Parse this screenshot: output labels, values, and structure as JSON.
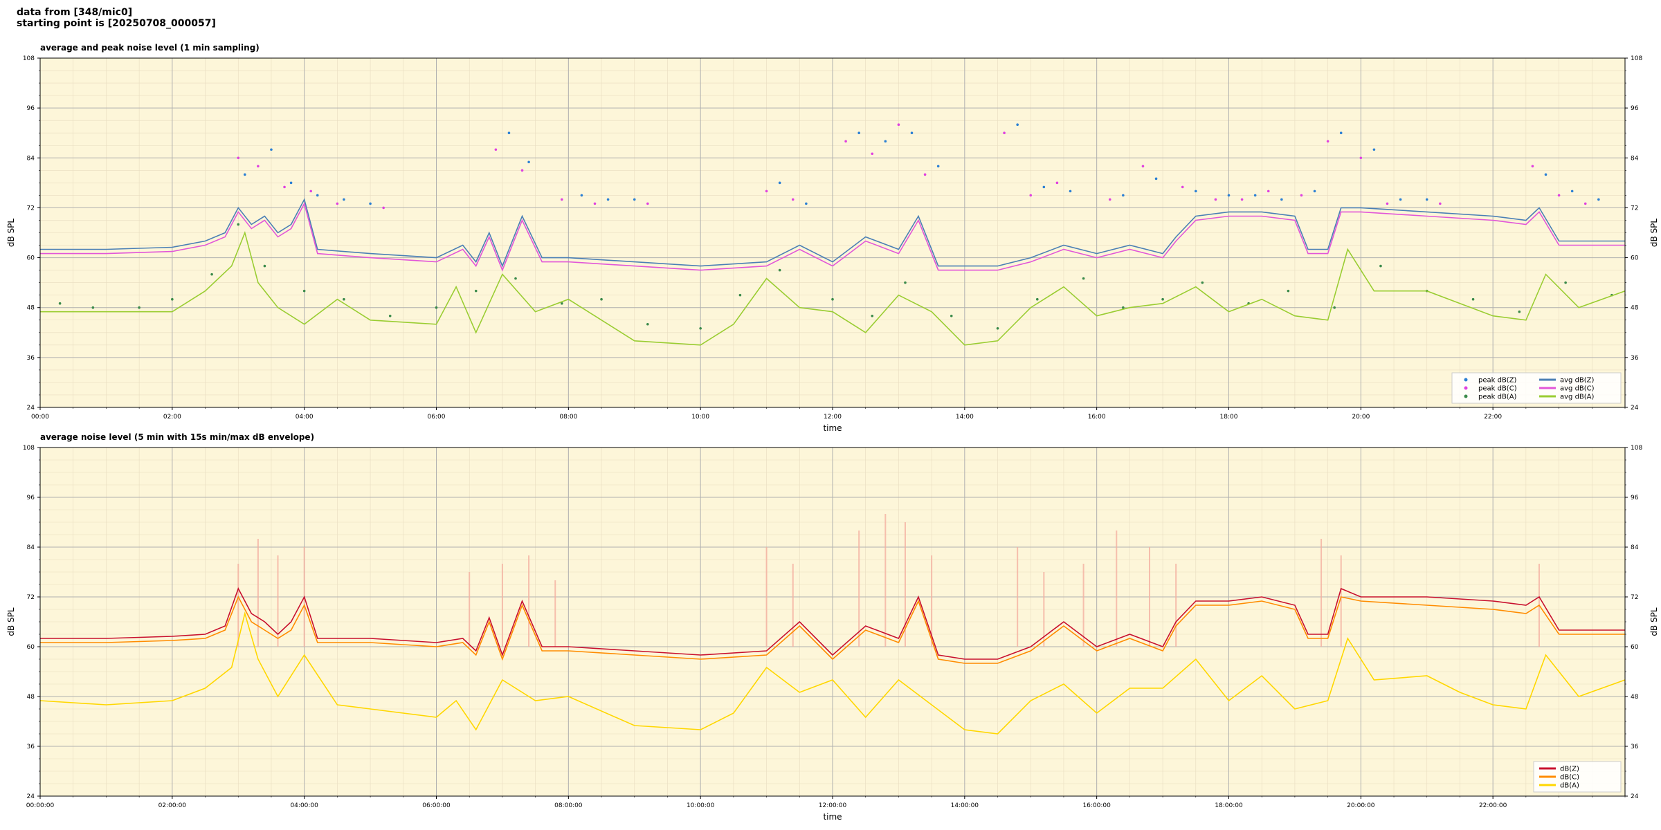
{
  "header": {
    "line1": "data from [348/mic0]",
    "line2": "starting point is [20250708_000057]"
  },
  "chart_data": [
    {
      "type": "line",
      "title": "average and peak noise level (1 min sampling)",
      "xlabel": "time",
      "ylabel": "dB SPL",
      "ylim": [
        24,
        108
      ],
      "xlim": [
        0,
        24
      ],
      "yticks": [
        "24",
        "36",
        "48",
        "60",
        "72",
        "84",
        "96",
        "108"
      ],
      "xticks": [
        "00:00",
        "02:00",
        "04:00",
        "06:00",
        "08:00",
        "10:00",
        "12:00",
        "14:00",
        "16:00",
        "18:00",
        "20:00",
        "22:00"
      ],
      "grid": true,
      "legend_position": "lower-right",
      "legend": [
        {
          "label": "peak dB(Z)",
          "kind": "dot",
          "color": "#2a7fd4"
        },
        {
          "label": "peak dB(C)",
          "kind": "dot",
          "color": "#e040e0"
        },
        {
          "label": "peak dB(A)",
          "kind": "dot",
          "color": "#3a8a4a"
        },
        {
          "label": "avg dB(Z)",
          "kind": "line",
          "color": "#4a7fb5"
        },
        {
          "label": "avg dB(C)",
          "kind": "line",
          "color": "#e256d8"
        },
        {
          "label": "avg dB(A)",
          "kind": "line",
          "color": "#9acd32"
        }
      ],
      "series": [
        {
          "color": "#4a7fb5",
          "x": [
            0,
            1,
            2,
            2.5,
            2.8,
            3,
            3.2,
            3.4,
            3.6,
            3.8,
            4,
            4.2,
            5,
            6,
            6.4,
            6.6,
            6.8,
            7,
            7.3,
            7.6,
            8,
            9,
            10,
            11,
            11.5,
            12,
            12.5,
            13,
            13.3,
            13.6,
            14,
            14.5,
            15,
            15.5,
            16,
            16.5,
            17,
            17.2,
            17.5,
            18,
            18.5,
            19,
            19.2,
            19.5,
            19.7,
            20,
            21,
            22,
            22.5,
            22.7,
            23,
            24
          ],
          "y": [
            62,
            62,
            62.5,
            64,
            66,
            72,
            68,
            70,
            66,
            68,
            74,
            62,
            61,
            60,
            63,
            59,
            66,
            58,
            70,
            60,
            60,
            59,
            58,
            59,
            63,
            59,
            65,
            62,
            70,
            58,
            58,
            58,
            60,
            63,
            61,
            63,
            61,
            65,
            70,
            71,
            71,
            70,
            62,
            62,
            72,
            72,
            71,
            70,
            69,
            72,
            64,
            64
          ]
        },
        {
          "color": "#e256d8",
          "x": [
            0,
            1,
            2,
            2.5,
            2.8,
            3,
            3.2,
            3.4,
            3.6,
            3.8,
            4,
            4.2,
            5,
            6,
            6.4,
            6.6,
            6.8,
            7,
            7.3,
            7.6,
            8,
            9,
            10,
            11,
            11.5,
            12,
            12.5,
            13,
            13.3,
            13.6,
            14,
            14.5,
            15,
            15.5,
            16,
            16.5,
            17,
            17.2,
            17.5,
            18,
            18.5,
            19,
            19.2,
            19.5,
            19.7,
            20,
            21,
            22,
            22.5,
            22.7,
            23,
            24
          ],
          "y": [
            61,
            61,
            61.5,
            63,
            65,
            71,
            67,
            69,
            65,
            67,
            73,
            61,
            60,
            59,
            62,
            58,
            65,
            57,
            69,
            59,
            59,
            58,
            57,
            58,
            62,
            58,
            64,
            61,
            69,
            57,
            57,
            57,
            59,
            62,
            60,
            62,
            60,
            64,
            69,
            70,
            70,
            69,
            61,
            61,
            71,
            71,
            70,
            69,
            68,
            71,
            63,
            63
          ]
        },
        {
          "color": "#9acd32",
          "x": [
            0,
            1,
            2,
            2.5,
            2.9,
            3.1,
            3.3,
            3.6,
            4,
            4.5,
            5,
            6,
            6.3,
            6.6,
            7,
            7.5,
            8,
            9,
            10,
            10.5,
            11,
            11.5,
            12,
            12.5,
            13,
            13.5,
            14,
            14.5,
            15,
            15.5,
            16,
            16.5,
            17,
            17.5,
            18,
            18.5,
            19,
            19.5,
            19.8,
            20.2,
            21,
            21.5,
            22,
            22.5,
            22.8,
            23.3,
            24
          ],
          "y": [
            47,
            47,
            47,
            52,
            58,
            66,
            54,
            48,
            44,
            50,
            45,
            44,
            53,
            42,
            56,
            47,
            50,
            40,
            39,
            44,
            55,
            48,
            47,
            42,
            51,
            47,
            39,
            40,
            48,
            53,
            46,
            48,
            49,
            53,
            47,
            50,
            46,
            45,
            62,
            52,
            52,
            49,
            46,
            45,
            56,
            48,
            52
          ]
        }
      ],
      "scatter": [
        {
          "color": "#2a7fd4",
          "x": [
            3.1,
            3.5,
            3.8,
            4.2,
            4.6,
            5,
            7.1,
            7.4,
            8.2,
            8.6,
            9,
            11.2,
            11.6,
            12.4,
            12.8,
            13.2,
            13.6,
            14.8,
            15.2,
            15.6,
            16.4,
            16.9,
            17.5,
            18,
            18.4,
            18.8,
            19.3,
            19.7,
            20.2,
            20.6,
            21,
            22.8,
            23.2,
            23.6
          ],
          "y": [
            80,
            86,
            78,
            75,
            74,
            73,
            90,
            83,
            75,
            74,
            74,
            78,
            73,
            90,
            88,
            90,
            82,
            92,
            77,
            76,
            75,
            79,
            76,
            75,
            75,
            74,
            76,
            90,
            86,
            74,
            74,
            80,
            76,
            74
          ]
        },
        {
          "color": "#e040e0",
          "x": [
            3,
            3.3,
            3.7,
            4.1,
            4.5,
            5.2,
            6.9,
            7.3,
            7.9,
            8.4,
            9.2,
            11,
            11.4,
            12.2,
            12.6,
            13,
            13.4,
            14.6,
            15,
            15.4,
            16.2,
            16.7,
            17.3,
            17.8,
            18.2,
            18.6,
            19.1,
            19.5,
            20,
            20.4,
            21.2,
            22.6,
            23,
            23.4
          ],
          "y": [
            84,
            82,
            77,
            76,
            73,
            72,
            86,
            81,
            74,
            73,
            73,
            76,
            74,
            88,
            85,
            92,
            80,
            90,
            75,
            78,
            74,
            82,
            77,
            74,
            74,
            76,
            75,
            88,
            84,
            73,
            73,
            82,
            75,
            73
          ]
        },
        {
          "color": "#3a8a4a",
          "x": [
            0.3,
            0.8,
            1.5,
            2,
            2.6,
            3,
            3.4,
            4,
            4.6,
            5.3,
            6,
            6.6,
            7.2,
            7.9,
            8.5,
            9.2,
            10,
            10.6,
            11.2,
            12,
            12.6,
            13.1,
            13.8,
            14.5,
            15.1,
            15.8,
            16.4,
            17,
            17.6,
            18.3,
            18.9,
            19.6,
            20.3,
            21,
            21.7,
            22.4,
            23.1,
            23.8
          ],
          "y": [
            49,
            48,
            48,
            50,
            56,
            68,
            58,
            52,
            50,
            46,
            48,
            52,
            55,
            49,
            50,
            44,
            43,
            51,
            57,
            50,
            46,
            54,
            46,
            43,
            50,
            55,
            48,
            50,
            54,
            49,
            52,
            48,
            58,
            52,
            50,
            47,
            54,
            51
          ]
        }
      ]
    },
    {
      "type": "line",
      "title": "average noise level (5 min with 15s min/max dB envelope)",
      "xlabel": "time",
      "ylabel": "dB SPL",
      "ylim": [
        24,
        108
      ],
      "xlim": [
        0,
        24
      ],
      "yticks": [
        "24",
        "36",
        "48",
        "60",
        "72",
        "84",
        "96",
        "108"
      ],
      "xticks": [
        "00:00:00",
        "02:00:00",
        "04:00:00",
        "06:00:00",
        "08:00:00",
        "10:00:00",
        "12:00:00",
        "14:00:00",
        "16:00:00",
        "18:00:00",
        "20:00:00",
        "22:00:00"
      ],
      "grid": true,
      "legend_position": "lower-right",
      "legend": [
        {
          "label": "dB(Z)",
          "kind": "line",
          "color": "#c8102e"
        },
        {
          "label": "dB(C)",
          "kind": "line",
          "color": "#ff8c00"
        },
        {
          "label": "dB(A)",
          "kind": "line",
          "color": "#ffd700"
        }
      ],
      "envelope": {
        "color": "#f4b0a0",
        "x": [
          3,
          3.3,
          3.6,
          4,
          6.5,
          7,
          7.4,
          7.8,
          11,
          11.4,
          12.4,
          12.8,
          13.1,
          13.5,
          14.8,
          15.2,
          15.8,
          16.3,
          16.8,
          17.2,
          19.4,
          19.7,
          22.7
        ],
        "y": [
          80,
          86,
          82,
          84,
          78,
          80,
          82,
          76,
          84,
          80,
          88,
          92,
          90,
          82,
          84,
          78,
          80,
          88,
          84,
          80,
          86,
          82,
          80
        ]
      },
      "series": [
        {
          "color": "#c8102e",
          "x": [
            0,
            1,
            2,
            2.5,
            2.8,
            3,
            3.2,
            3.4,
            3.6,
            3.8,
            4,
            4.2,
            5,
            6,
            6.4,
            6.6,
            6.8,
            7,
            7.3,
            7.6,
            8,
            9,
            10,
            11,
            11.5,
            12,
            12.5,
            13,
            13.3,
            13.6,
            14,
            14.5,
            15,
            15.5,
            16,
            16.5,
            17,
            17.2,
            17.5,
            18,
            18.5,
            19,
            19.2,
            19.5,
            19.7,
            20,
            21,
            22,
            22.5,
            22.7,
            23,
            24
          ],
          "y": [
            62,
            62,
            62.5,
            63,
            65,
            74,
            68,
            66,
            63,
            66,
            72,
            62,
            62,
            61,
            62,
            59,
            67,
            58,
            71,
            60,
            60,
            59,
            58,
            59,
            66,
            58,
            65,
            62,
            72,
            58,
            57,
            57,
            60,
            66,
            60,
            63,
            60,
            66,
            71,
            71,
            72,
            70,
            63,
            63,
            74,
            72,
            72,
            71,
            70,
            72,
            64,
            64
          ]
        },
        {
          "color": "#ff8c00",
          "x": [
            0,
            1,
            2,
            2.5,
            2.8,
            3,
            3.2,
            3.4,
            3.6,
            3.8,
            4,
            4.2,
            5,
            6,
            6.4,
            6.6,
            6.8,
            7,
            7.3,
            7.6,
            8,
            9,
            10,
            11,
            11.5,
            12,
            12.5,
            13,
            13.3,
            13.6,
            14,
            14.5,
            15,
            15.5,
            16,
            16.5,
            17,
            17.2,
            17.5,
            18,
            18.5,
            19,
            19.2,
            19.5,
            19.7,
            20,
            21,
            22,
            22.5,
            22.7,
            23,
            24
          ],
          "y": [
            61,
            61,
            61.5,
            62,
            64,
            72,
            66,
            64,
            62,
            64,
            70,
            61,
            61,
            60,
            61,
            58,
            66,
            57,
            70,
            59,
            59,
            58,
            57,
            58,
            65,
            57,
            64,
            61,
            71,
            57,
            56,
            56,
            59,
            65,
            59,
            62,
            59,
            65,
            70,
            70,
            71,
            69,
            62,
            62,
            72,
            71,
            70,
            69,
            68,
            70,
            63,
            63
          ]
        },
        {
          "color": "#ffd700",
          "x": [
            0,
            1,
            2,
            2.5,
            2.9,
            3.1,
            3.3,
            3.6,
            4,
            4.5,
            5,
            6,
            6.3,
            6.6,
            7,
            7.5,
            8,
            9,
            10,
            10.5,
            11,
            11.5,
            12,
            12.5,
            13,
            13.5,
            14,
            14.5,
            15,
            15.5,
            16,
            16.5,
            17,
            17.5,
            18,
            18.5,
            19,
            19.5,
            19.8,
            20.2,
            21,
            21.5,
            22,
            22.5,
            22.8,
            23.3,
            24
          ],
          "y": [
            47,
            46,
            47,
            50,
            55,
            68,
            57,
            48,
            58,
            46,
            45,
            43,
            47,
            40,
            52,
            47,
            48,
            41,
            40,
            44,
            55,
            49,
            52,
            43,
            52,
            46,
            40,
            39,
            47,
            51,
            44,
            50,
            50,
            57,
            47,
            53,
            45,
            47,
            62,
            52,
            53,
            49,
            46,
            45,
            58,
            48,
            52
          ]
        }
      ]
    }
  ]
}
